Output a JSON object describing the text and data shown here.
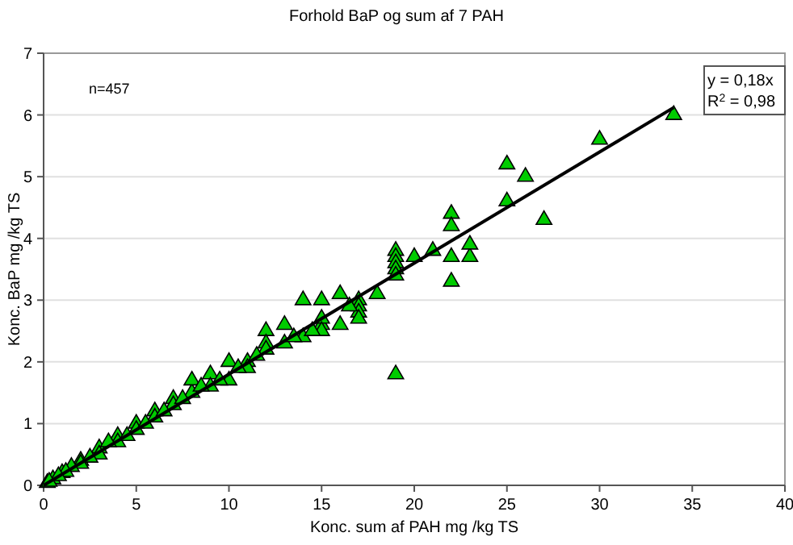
{
  "chart_data": {
    "type": "scatter",
    "title": "Forhold BaP og sum af 7 PAH",
    "xlabel": "Konc. sum af PAH mg /kg TS",
    "ylabel": "Konc. BaP mg /kg TS",
    "xlim": [
      0,
      40
    ],
    "ylim": [
      0,
      7
    ],
    "xticks": [
      0,
      5,
      10,
      15,
      20,
      25,
      30,
      35,
      40
    ],
    "yticks": [
      0,
      1,
      2,
      3,
      4,
      5,
      6,
      7
    ],
    "grid": "y",
    "annotations": [
      "n=457",
      "y = 0,18x",
      "R$^{2}$ = 0,98"
    ],
    "series": [
      {
        "marker": "triangle",
        "color": "#00cc00",
        "x": [
          34,
          30,
          25,
          26,
          25,
          27,
          22,
          22,
          21,
          22,
          23,
          23,
          22,
          19,
          19,
          19,
          19,
          19,
          20,
          18,
          19,
          17,
          16,
          16,
          17,
          17,
          17,
          15,
          14,
          15,
          15,
          15,
          14,
          13,
          13,
          12,
          12,
          12,
          11,
          11,
          10,
          10,
          9,
          9,
          8,
          8,
          7,
          7,
          6,
          6,
          5,
          5,
          4,
          4,
          3,
          3,
          2,
          2,
          1.5,
          1,
          0.5,
          0.2,
          8.5,
          9.5,
          7.5,
          6.5,
          5.5,
          4.5,
          3.5,
          2.5,
          1.2,
          0.8,
          0.3,
          13.5,
          14.5,
          10.5,
          11.5,
          16.5
        ],
        "values": [
          6.0,
          5.6,
          5.2,
          5.0,
          4.6,
          4.3,
          4.4,
          4.2,
          3.8,
          3.7,
          3.7,
          3.9,
          3.3,
          3.8,
          3.7,
          3.6,
          3.5,
          3.4,
          3.7,
          3.1,
          1.8,
          3.0,
          3.1,
          2.6,
          2.9,
          2.8,
          2.7,
          3.0,
          3.0,
          2.6,
          2.7,
          2.5,
          2.4,
          2.6,
          2.3,
          2.5,
          2.3,
          2.2,
          2.0,
          1.9,
          2.0,
          1.7,
          1.8,
          1.6,
          1.5,
          1.7,
          1.4,
          1.3,
          1.2,
          1.1,
          1.0,
          0.9,
          0.8,
          0.7,
          0.6,
          0.5,
          0.4,
          0.35,
          0.3,
          0.2,
          0.1,
          0.04,
          1.6,
          1.7,
          1.4,
          1.2,
          1.0,
          0.8,
          0.7,
          0.45,
          0.22,
          0.15,
          0.06,
          2.4,
          2.5,
          1.9,
          2.1,
          2.9
        ]
      },
      {
        "type": "line",
        "color": "#000000",
        "x": [
          0,
          34
        ],
        "values": [
          0,
          6.12
        ]
      }
    ]
  }
}
